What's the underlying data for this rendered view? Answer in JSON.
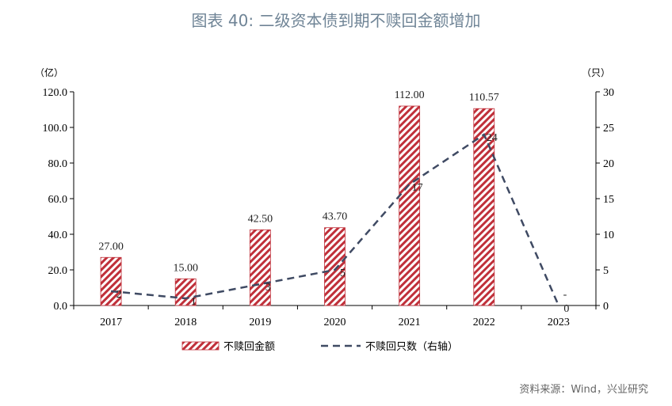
{
  "title": "图表 40: 二级资本债到期不赎回金额增加",
  "source": "资料来源：Wind，兴业研究",
  "colors": {
    "bar": "#c0303a",
    "line": "#3f4a63",
    "title": "#6f8496"
  },
  "chart_data": {
    "type": "bar",
    "categories": [
      "2017",
      "2018",
      "2019",
      "2020",
      "2021",
      "2022",
      "2023"
    ],
    "left_axis": {
      "unit": "（亿）",
      "ylim": [
        0,
        120
      ],
      "ticks": [
        "0.0",
        "20.0",
        "40.0",
        "60.0",
        "80.0",
        "100.0",
        "120.0"
      ]
    },
    "right_axis": {
      "unit": "（只）",
      "ylim": [
        0,
        30
      ],
      "ticks": [
        "0",
        "5",
        "10",
        "15",
        "20",
        "25",
        "30"
      ]
    },
    "series": [
      {
        "name": "不赎回金额",
        "type": "bar",
        "axis": "left",
        "values": [
          27.0,
          15.0,
          42.5,
          43.7,
          112.0,
          110.57,
          0
        ],
        "labels": [
          "27.00",
          "15.00",
          "42.50",
          "43.70",
          "112.00",
          "110.57",
          "-"
        ]
      },
      {
        "name": "不赎回只数（右轴）",
        "type": "line",
        "axis": "right",
        "values": [
          2,
          1,
          3,
          5,
          17,
          24,
          0
        ],
        "labels": [
          "2",
          "1",
          "3",
          "5",
          "17",
          "24",
          "0"
        ]
      }
    ],
    "legend_position": "bottom"
  }
}
